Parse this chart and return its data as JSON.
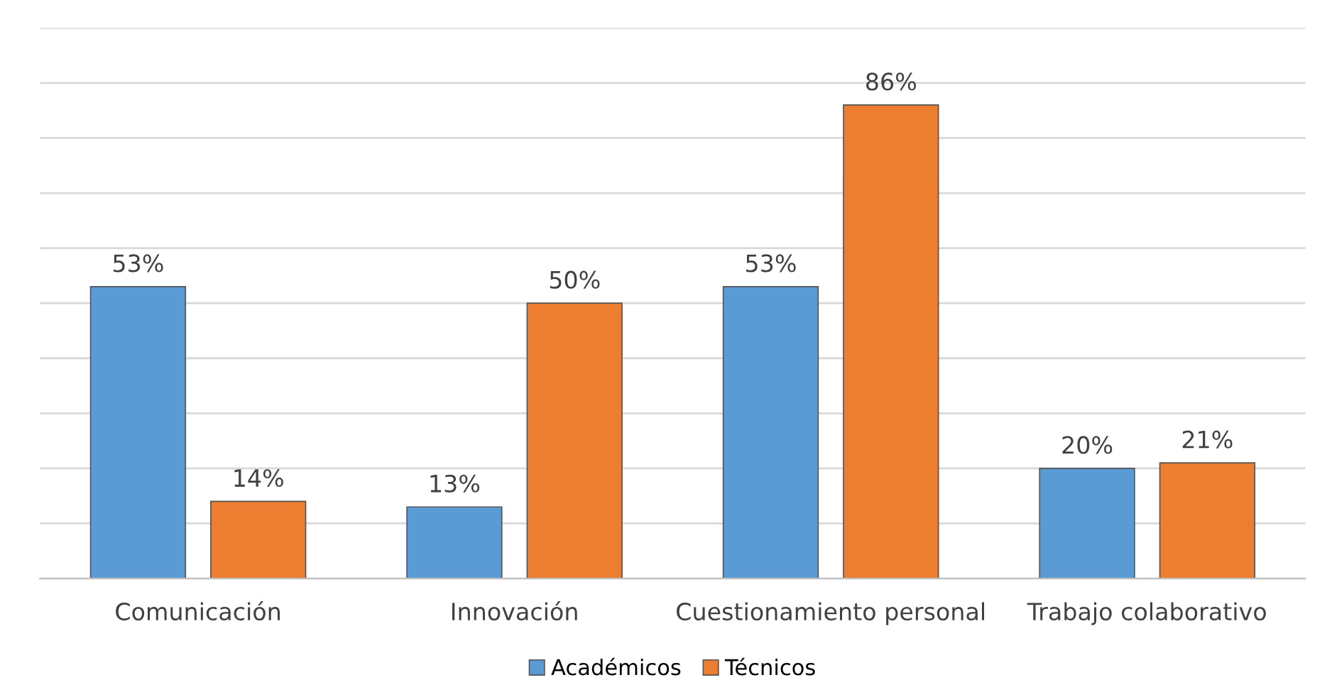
{
  "chart_data": {
    "type": "bar",
    "categories": [
      "Comunicación",
      "Innovación",
      "Cuestionamiento personal",
      "Trabajo colaborativo"
    ],
    "series": [
      {
        "name": "Académicos",
        "color": "#5b9bd5",
        "values": [
          53,
          13,
          53,
          20
        ],
        "value_labels": [
          "53%",
          "13%",
          "53%",
          "20%"
        ]
      },
      {
        "name": "Técnicos",
        "color": "#ed7d31",
        "values": [
          14,
          50,
          86,
          21
        ],
        "value_labels": [
          "14%",
          "50%",
          "86%",
          "21%"
        ]
      }
    ],
    "ylim": [
      0,
      100
    ],
    "yticks": [
      {
        "value": 0,
        "label": null
      },
      {
        "value": 10,
        "label": null
      },
      {
        "value": 20,
        "label": null
      },
      {
        "value": 30,
        "label": null
      },
      {
        "value": 40,
        "label": null
      },
      {
        "value": 50,
        "label": null
      },
      {
        "value": 60,
        "label": null
      },
      {
        "value": 70,
        "label": null
      },
      {
        "value": 80,
        "label": null
      },
      {
        "value": 90,
        "label": null
      },
      {
        "value": 100,
        "label": null
      }
    ],
    "tick_labels": "x",
    "grid": "y",
    "legend": "bottom"
  }
}
